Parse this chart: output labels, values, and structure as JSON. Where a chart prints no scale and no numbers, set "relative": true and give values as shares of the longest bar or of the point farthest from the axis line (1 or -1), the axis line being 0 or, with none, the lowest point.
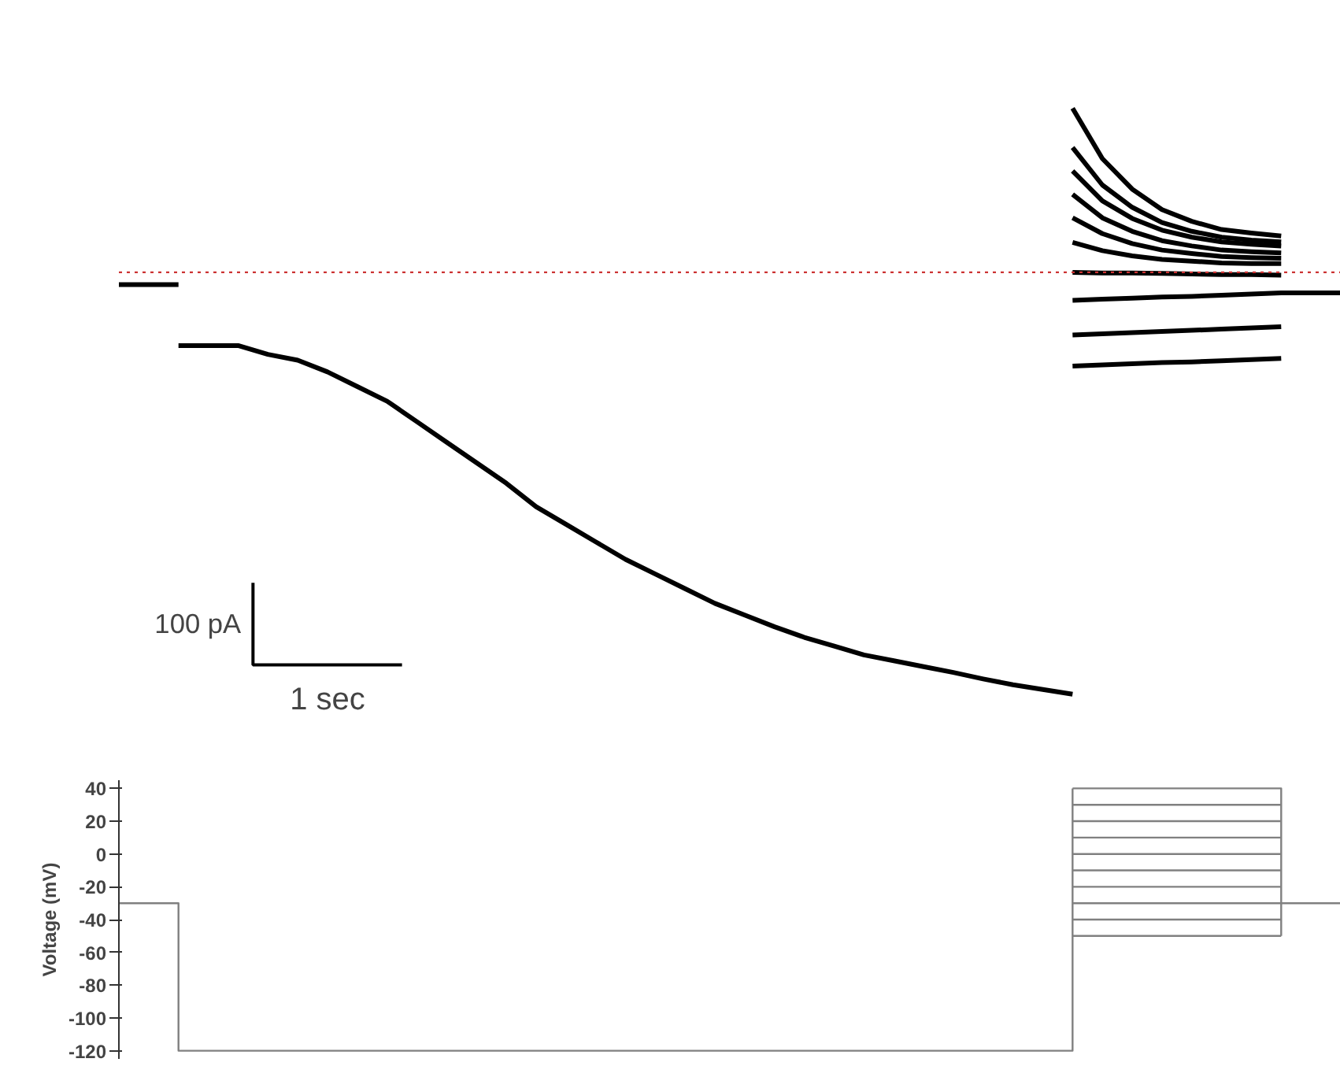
{
  "chart_data": [
    {
      "type": "line",
      "relative": true,
      "annotations": [
        "100 pA",
        "1 sec"
      ],
      "grid": false,
      "tick_labels": false,
      "categories": [
        null,
        null,
        null,
        null,
        null,
        null,
        null,
        null,
        null,
        null,
        null,
        null,
        null,
        null,
        null,
        null,
        null,
        null,
        null,
        null,
        null,
        null,
        null,
        null,
        null,
        null,
        null,
        null,
        null,
        null,
        null,
        null,
        null,
        null,
        null,
        null,
        null,
        null,
        null,
        null,
        null,
        null
      ],
      "ref_lines": [
        {
          "axis": "y",
          "value": 0.72,
          "color": "#cc3333",
          "line_style": "dotted"
        }
      ],
      "series": [
        {
          "color": "#000000",
          "values": [
            0.699,
            0.699,
            0.699,
            null,
            null,
            null,
            null,
            null,
            null,
            null,
            null,
            null,
            null,
            null,
            null,
            null,
            null,
            null,
            null,
            null,
            null,
            null,
            null,
            null,
            null,
            null,
            null,
            null,
            null,
            null,
            null,
            null,
            null,
            null,
            null,
            null,
            null,
            null,
            null,
            null,
            null,
            null
          ]
        },
        {
          "color": "#000000",
          "values": [
            null,
            null,
            0.595,
            0.595,
            0.595,
            0.58,
            0.57,
            0.55,
            0.525,
            0.5,
            0.465,
            0.43,
            0.395,
            0.36,
            0.32,
            0.29,
            0.26,
            0.23,
            0.205,
            0.18,
            0.155,
            0.135,
            0.115,
            0.097,
            0.082,
            0.067,
            0.057,
            0.047,
            0.037,
            0.026,
            0.016,
            0.008,
            0,
            null,
            null,
            null,
            null,
            null,
            null,
            null,
            null,
            null
          ]
        },
        {
          "color": "#000000",
          "values": [
            null,
            null,
            null,
            null,
            null,
            null,
            null,
            null,
            null,
            null,
            null,
            null,
            null,
            null,
            null,
            null,
            null,
            null,
            null,
            null,
            null,
            null,
            null,
            null,
            null,
            null,
            null,
            null,
            null,
            null,
            null,
            null,
            1.0,
            0.914,
            0.862,
            0.827,
            0.807,
            0.793,
            0.787,
            0.782,
            null,
            null
          ]
        },
        {
          "color": "#000000",
          "values": [
            null,
            null,
            null,
            null,
            null,
            null,
            null,
            null,
            null,
            null,
            null,
            null,
            null,
            null,
            null,
            null,
            null,
            null,
            null,
            null,
            null,
            null,
            null,
            null,
            null,
            null,
            null,
            null,
            null,
            null,
            null,
            null,
            0.933,
            0.869,
            0.831,
            0.805,
            0.79,
            0.78,
            0.775,
            0.772,
            null,
            null
          ]
        },
        {
          "color": "#000000",
          "values": [
            null,
            null,
            null,
            null,
            null,
            null,
            null,
            null,
            null,
            null,
            null,
            null,
            null,
            null,
            null,
            null,
            null,
            null,
            null,
            null,
            null,
            null,
            null,
            null,
            null,
            null,
            null,
            null,
            null,
            null,
            null,
            null,
            0.893,
            0.842,
            0.812,
            0.792,
            0.78,
            0.772,
            0.768,
            0.765,
            null,
            null
          ]
        },
        {
          "color": "#000000",
          "values": [
            null,
            null,
            null,
            null,
            null,
            null,
            null,
            null,
            null,
            null,
            null,
            null,
            null,
            null,
            null,
            null,
            null,
            null,
            null,
            null,
            null,
            null,
            null,
            null,
            null,
            null,
            null,
            null,
            null,
            null,
            null,
            null,
            0.853,
            0.813,
            0.79,
            0.774,
            0.765,
            0.758,
            0.755,
            0.753,
            null,
            null
          ]
        },
        {
          "color": "#000000",
          "values": [
            null,
            null,
            null,
            null,
            null,
            null,
            null,
            null,
            null,
            null,
            null,
            null,
            null,
            null,
            null,
            null,
            null,
            null,
            null,
            null,
            null,
            null,
            null,
            null,
            null,
            null,
            null,
            null,
            null,
            null,
            null,
            null,
            0.813,
            0.786,
            0.769,
            0.758,
            0.752,
            0.747,
            0.745,
            0.744,
            null,
            null
          ]
        },
        {
          "color": "#000000",
          "values": [
            null,
            null,
            null,
            null,
            null,
            null,
            null,
            null,
            null,
            null,
            null,
            null,
            null,
            null,
            null,
            null,
            null,
            null,
            null,
            null,
            null,
            null,
            null,
            null,
            null,
            null,
            null,
            null,
            null,
            null,
            null,
            null,
            0.771,
            0.757,
            0.748,
            0.742,
            0.739,
            0.736,
            0.735,
            0.735,
            null,
            null
          ]
        },
        {
          "color": "#000000",
          "values": [
            null,
            null,
            null,
            null,
            null,
            null,
            null,
            null,
            null,
            null,
            null,
            null,
            null,
            null,
            null,
            null,
            null,
            null,
            null,
            null,
            null,
            null,
            null,
            null,
            null,
            null,
            null,
            null,
            null,
            null,
            null,
            null,
            0.72,
            0.719,
            0.719,
            0.718,
            0.717,
            0.716,
            0.716,
            0.715,
            null,
            null
          ]
        },
        {
          "color": "#000000",
          "values": [
            null,
            null,
            null,
            null,
            null,
            null,
            null,
            null,
            null,
            null,
            null,
            null,
            null,
            null,
            null,
            null,
            null,
            null,
            null,
            null,
            null,
            null,
            null,
            null,
            null,
            null,
            null,
            null,
            null,
            null,
            null,
            null,
            0.672,
            0.674,
            0.676,
            0.678,
            0.679,
            0.681,
            0.683,
            0.685,
            0.685,
            0.685
          ]
        },
        {
          "color": "#000000",
          "values": [
            null,
            null,
            null,
            null,
            null,
            null,
            null,
            null,
            null,
            null,
            null,
            null,
            null,
            null,
            null,
            null,
            null,
            null,
            null,
            null,
            null,
            null,
            null,
            null,
            null,
            null,
            null,
            null,
            null,
            null,
            null,
            null,
            0.613,
            0.615,
            0.617,
            0.619,
            0.621,
            0.623,
            0.625,
            0.627,
            null,
            null
          ]
        },
        {
          "color": "#000000",
          "values": [
            null,
            null,
            null,
            null,
            null,
            null,
            null,
            null,
            null,
            null,
            null,
            null,
            null,
            null,
            null,
            null,
            null,
            null,
            null,
            null,
            null,
            null,
            null,
            null,
            null,
            null,
            null,
            null,
            null,
            null,
            null,
            null,
            0.56,
            0.562,
            0.564,
            0.566,
            0.567,
            0.569,
            0.571,
            0.573,
            null,
            null
          ]
        }
      ]
    },
    {
      "type": "step",
      "ylabel": "Voltage (mV)",
      "ylim": [
        -125,
        45
      ],
      "yticks": [
        -120,
        -100,
        -80,
        -60,
        -40,
        -20,
        0,
        20,
        40
      ],
      "grid": false,
      "tick_labels": "y",
      "categories": [
        null,
        null,
        null,
        null,
        null,
        null,
        null,
        null,
        null,
        null,
        null,
        null,
        null,
        null,
        null,
        null,
        null,
        null,
        null,
        null,
        null,
        null,
        null,
        null,
        null,
        null,
        null,
        null,
        null,
        null,
        null,
        null,
        null,
        null,
        null,
        null,
        null,
        null,
        null,
        null,
        null,
        null
      ],
      "series": [
        {
          "color": "#808080",
          "values": [
            -30,
            -30,
            -120,
            -120,
            -120,
            -120,
            -120,
            -120,
            -120,
            -120,
            -120,
            -120,
            -120,
            -120,
            -120,
            -120,
            -120,
            -120,
            -120,
            -120,
            -120,
            -120,
            -120,
            -120,
            -120,
            -120,
            -120,
            -120,
            -120,
            -120,
            -120,
            -120,
            40,
            null,
            null,
            null,
            null,
            null,
            null,
            null,
            null,
            null
          ]
        },
        {
          "color": "#808080",
          "values": [
            null,
            null,
            null,
            null,
            null,
            null,
            null,
            null,
            null,
            null,
            null,
            null,
            null,
            null,
            null,
            null,
            null,
            null,
            null,
            null,
            null,
            null,
            null,
            null,
            null,
            null,
            null,
            null,
            null,
            null,
            null,
            null,
            40,
            40,
            40,
            40,
            40,
            40,
            40,
            -50,
            null,
            null
          ]
        },
        {
          "color": "#808080",
          "values": [
            null,
            null,
            null,
            null,
            null,
            null,
            null,
            null,
            null,
            null,
            null,
            null,
            null,
            null,
            null,
            null,
            null,
            null,
            null,
            null,
            null,
            null,
            null,
            null,
            null,
            null,
            null,
            null,
            null,
            null,
            null,
            null,
            30,
            30,
            30,
            30,
            30,
            30,
            30,
            30,
            null,
            null
          ]
        },
        {
          "color": "#808080",
          "values": [
            null,
            null,
            null,
            null,
            null,
            null,
            null,
            null,
            null,
            null,
            null,
            null,
            null,
            null,
            null,
            null,
            null,
            null,
            null,
            null,
            null,
            null,
            null,
            null,
            null,
            null,
            null,
            null,
            null,
            null,
            null,
            null,
            20,
            20,
            20,
            20,
            20,
            20,
            20,
            20,
            null,
            null
          ]
        },
        {
          "color": "#808080",
          "values": [
            null,
            null,
            null,
            null,
            null,
            null,
            null,
            null,
            null,
            null,
            null,
            null,
            null,
            null,
            null,
            null,
            null,
            null,
            null,
            null,
            null,
            null,
            null,
            null,
            null,
            null,
            null,
            null,
            null,
            null,
            null,
            null,
            10,
            10,
            10,
            10,
            10,
            10,
            10,
            10,
            null,
            null
          ]
        },
        {
          "color": "#808080",
          "values": [
            null,
            null,
            null,
            null,
            null,
            null,
            null,
            null,
            null,
            null,
            null,
            null,
            null,
            null,
            null,
            null,
            null,
            null,
            null,
            null,
            null,
            null,
            null,
            null,
            null,
            null,
            null,
            null,
            null,
            null,
            null,
            null,
            0,
            0,
            0,
            0,
            0,
            0,
            0,
            0,
            null,
            null
          ]
        },
        {
          "color": "#808080",
          "values": [
            null,
            null,
            null,
            null,
            null,
            null,
            null,
            null,
            null,
            null,
            null,
            null,
            null,
            null,
            null,
            null,
            null,
            null,
            null,
            null,
            null,
            null,
            null,
            null,
            null,
            null,
            null,
            null,
            null,
            null,
            null,
            null,
            -10,
            -10,
            -10,
            -10,
            -10,
            -10,
            -10,
            -10,
            null,
            null
          ]
        },
        {
          "color": "#808080",
          "values": [
            null,
            null,
            null,
            null,
            null,
            null,
            null,
            null,
            null,
            null,
            null,
            null,
            null,
            null,
            null,
            null,
            null,
            null,
            null,
            null,
            null,
            null,
            null,
            null,
            null,
            null,
            null,
            null,
            null,
            null,
            null,
            null,
            -20,
            -20,
            -20,
            -20,
            -20,
            -20,
            -20,
            -20,
            null,
            null
          ]
        },
        {
          "color": "#808080",
          "values": [
            null,
            null,
            null,
            null,
            null,
            null,
            null,
            null,
            null,
            null,
            null,
            null,
            null,
            null,
            null,
            null,
            null,
            null,
            null,
            null,
            null,
            null,
            null,
            null,
            null,
            null,
            null,
            null,
            null,
            null,
            null,
            null,
            -30,
            -30,
            -30,
            -30,
            -30,
            -30,
            -30,
            -30,
            -30,
            -30
          ]
        },
        {
          "color": "#808080",
          "values": [
            null,
            null,
            null,
            null,
            null,
            null,
            null,
            null,
            null,
            null,
            null,
            null,
            null,
            null,
            null,
            null,
            null,
            null,
            null,
            null,
            null,
            null,
            null,
            null,
            null,
            null,
            null,
            null,
            null,
            null,
            null,
            null,
            -40,
            -40,
            -40,
            -40,
            -40,
            -40,
            -40,
            -40,
            null,
            null
          ]
        },
        {
          "color": "#808080",
          "values": [
            null,
            null,
            null,
            null,
            null,
            null,
            null,
            null,
            null,
            null,
            null,
            null,
            null,
            null,
            null,
            null,
            null,
            null,
            null,
            null,
            null,
            null,
            null,
            null,
            null,
            null,
            null,
            null,
            null,
            null,
            null,
            null,
            -50,
            -50,
            -50,
            -50,
            -50,
            -50,
            -50,
            -50,
            null,
            null
          ]
        }
      ]
    }
  ]
}
